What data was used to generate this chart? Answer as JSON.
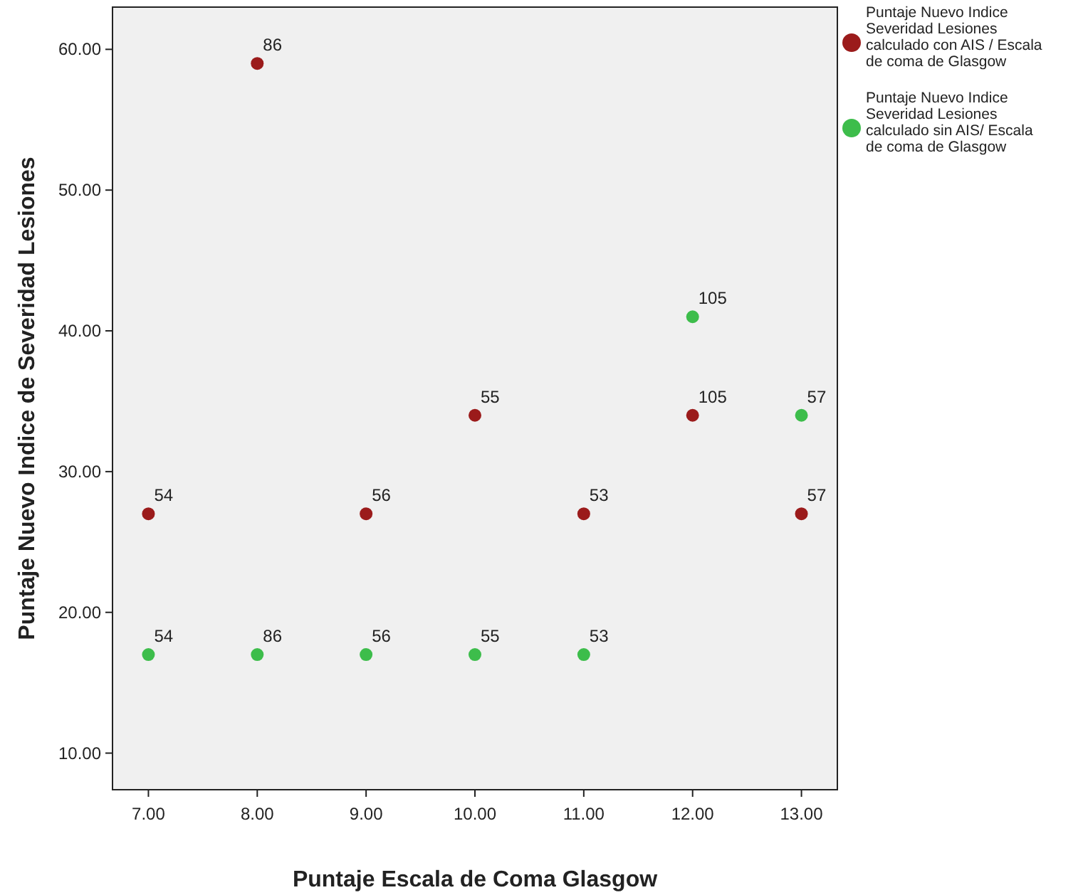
{
  "chart_data": {
    "type": "scatter",
    "xlabel": "Puntaje Escala de Coma Glasgow",
    "ylabel": "Puntaje Nuevo Indice de Severidad Lesiones",
    "xlim": [
      6.67,
      13.33
    ],
    "ylim": [
      7.4,
      63
    ],
    "xticks": [
      {
        "value": 7,
        "label": "7.00"
      },
      {
        "value": 8,
        "label": "8.00"
      },
      {
        "value": 9,
        "label": "9.00"
      },
      {
        "value": 10,
        "label": "10.00"
      },
      {
        "value": 11,
        "label": "11.00"
      },
      {
        "value": 12,
        "label": "12.00"
      },
      {
        "value": 13,
        "label": "13.00"
      }
    ],
    "yticks": [
      {
        "value": 10,
        "label": "10.00"
      },
      {
        "value": 20,
        "label": "20.00"
      },
      {
        "value": 30,
        "label": "30.00"
      },
      {
        "value": 40,
        "label": "40.00"
      },
      {
        "value": 50,
        "label": "50.00"
      },
      {
        "value": 60,
        "label": "60.00"
      }
    ],
    "grid": false,
    "legend": "top right",
    "marker": "circle",
    "series": [
      {
        "name": "Puntaje Nuevo Indice Severidad Lesiones calculado con AIS / Escala de coma de Glasgow",
        "color": "#9b1b1b",
        "x": [
          7,
          8,
          9,
          10,
          11,
          12,
          13
        ],
        "values": [
          27,
          59,
          27,
          34,
          27,
          34,
          27
        ]
      },
      {
        "name": "Puntaje Nuevo Indice Severidad Lesiones calculado sin AIS/ Escala de coma de Glasgow",
        "color": "#3dbd4b",
        "x": [
          7,
          8,
          9,
          10,
          11,
          12,
          13
        ],
        "values": [
          17,
          17,
          17,
          17,
          17,
          41,
          34
        ]
      }
    ],
    "annotations": [
      {
        "text": "54",
        "x": 7,
        "y": 27
      },
      {
        "text": "86",
        "x": 8,
        "y": 59
      },
      {
        "text": "56",
        "x": 9,
        "y": 27
      },
      {
        "text": "55",
        "x": 10,
        "y": 34
      },
      {
        "text": "53",
        "x": 11,
        "y": 27
      },
      {
        "text": "105",
        "x": 12,
        "y": 34
      },
      {
        "text": "57",
        "x": 13,
        "y": 27
      },
      {
        "text": "54",
        "x": 7,
        "y": 17
      },
      {
        "text": "86",
        "x": 8,
        "y": 17
      },
      {
        "text": "56",
        "x": 9,
        "y": 17
      },
      {
        "text": "55",
        "x": 10,
        "y": 17
      },
      {
        "text": "53",
        "x": 11,
        "y": 17
      },
      {
        "text": "105",
        "x": 12,
        "y": 41
      },
      {
        "text": "57",
        "x": 13,
        "y": 34
      }
    ]
  }
}
